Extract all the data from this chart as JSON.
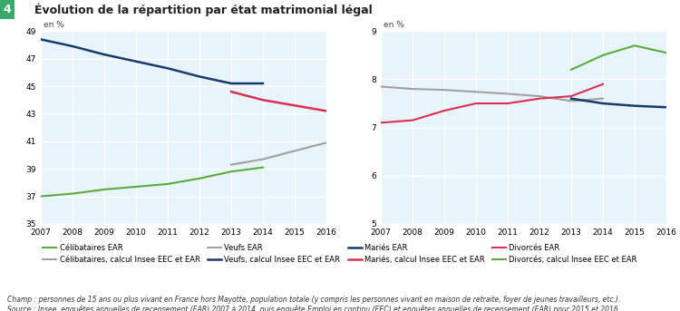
{
  "title": "Évolution de la répartition par état matrimonial légal",
  "title_box_label": "4",
  "ylabel": "en %",
  "background_color": "#d6e8f5",
  "plot_bg": "#e8f4fb",
  "years_ear": [
    2007,
    2008,
    2009,
    2010,
    2011,
    2012,
    2013,
    2014
  ],
  "years_eec": [
    2013,
    2014,
    2015,
    2016
  ],
  "left": {
    "ylim": [
      35,
      49
    ],
    "yticks": [
      35,
      37,
      39,
      41,
      43,
      45,
      47,
      49
    ],
    "celibataires_ear": [
      37.0,
      37.2,
      37.5,
      37.7,
      37.9,
      38.3,
      38.8,
      39.1
    ],
    "celibataires_eec": [
      39.3,
      39.7,
      40.3,
      40.9
    ],
    "maries_ear": [
      48.4,
      47.9,
      47.3,
      46.8,
      46.3,
      45.7,
      45.2,
      45.2
    ],
    "maries_eec": [
      44.6,
      44.0,
      43.6,
      43.2
    ]
  },
  "right": {
    "ylim": [
      5,
      9
    ],
    "yticks": [
      5,
      6,
      7,
      8,
      9
    ],
    "veufs_ear": [
      7.85,
      7.8,
      7.78,
      7.74,
      7.7,
      7.65,
      7.55,
      7.6
    ],
    "veufs_eec": [
      7.6,
      7.5,
      7.45,
      7.42
    ],
    "divorces_ear": [
      7.1,
      7.15,
      7.35,
      7.5,
      7.5,
      7.6,
      7.65,
      7.9
    ],
    "divorces_eec": [
      8.2,
      8.5,
      8.7,
      8.55
    ]
  },
  "colors": {
    "green": "#5aaa3c",
    "gray": "#a0a0a0",
    "dark_blue": "#1a3a6b",
    "red": "#d93050",
    "light_blue_grid": "#b8d8f0"
  },
  "legend_left": [
    {
      "label": "Célibataires EAR",
      "color": "#5aaa3c",
      "linestyle": "-"
    },
    {
      "label": "Célibataires, calcul Insee EEC et EAR",
      "color": "#a0a0a0",
      "linestyle": "-"
    },
    {
      "label": "Mariés EAR",
      "color": "#1a3a6b",
      "linestyle": "-"
    },
    {
      "label": "Mariés, calcul Insee EEC et EAR",
      "color": "#d93050",
      "linestyle": "-"
    }
  ],
  "legend_right": [
    {
      "label": "Veufs EAR",
      "color": "#a0a0a0",
      "linestyle": "-"
    },
    {
      "label": "Veufs, calcul Insee EEC et EAR",
      "color": "#1a3a6b",
      "linestyle": "-"
    },
    {
      "label": "Divorcés EAR",
      "color": "#d93050",
      "linestyle": "-"
    },
    {
      "label": "Divorcés, calcul Insee EEC et EAR",
      "color": "#5aaa3c",
      "linestyle": "-"
    }
  ],
  "footnote1": "Champ : personnes de 15 ans ou plus vivant en France hors Mayotte, population totale (y compris les personnes vivant en maison de retraite, foyer de jeunes travailleurs, etc.).",
  "footnote2": "Source : Insee, enquêtes annuelles de recensement (EAR) 2007 à 2014, puis enquête Emploi en continu (EEC) et enquêtes annuelles de recensement (EAR) pour 2015 et 2016."
}
